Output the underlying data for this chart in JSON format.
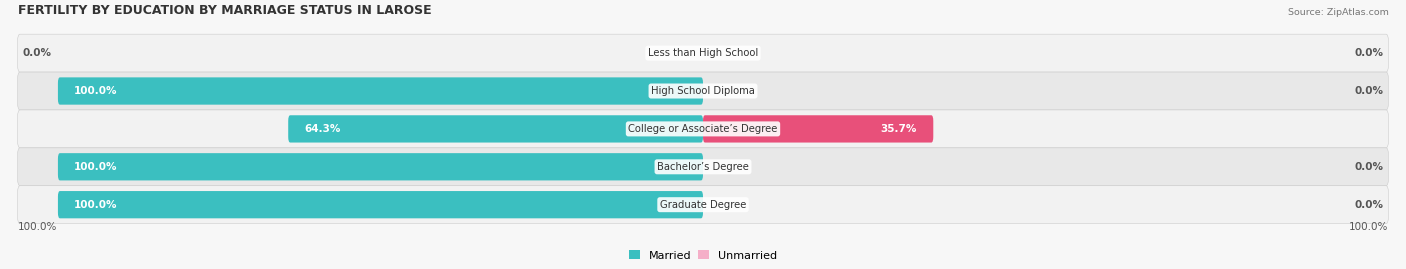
{
  "title": "FERTILITY BY EDUCATION BY MARRIAGE STATUS IN LAROSE",
  "source": "Source: ZipAtlas.com",
  "categories": [
    "Less than High School",
    "High School Diploma",
    "College or Associate’s Degree",
    "Bachelor’s Degree",
    "Graduate Degree"
  ],
  "married": [
    0.0,
    100.0,
    64.3,
    100.0,
    100.0
  ],
  "unmarried": [
    0.0,
    0.0,
    35.7,
    0.0,
    0.0
  ],
  "married_color": "#3bbfc0",
  "married_color_light": "#90d9da",
  "unmarried_color_strong": "#e8507a",
  "unmarried_color_light": "#f5afc8",
  "title_color": "#333333",
  "source_color": "#777777",
  "value_color_white": "#ffffff",
  "value_color_dark": "#555555",
  "legend_married": "Married",
  "legend_unmarried": "Unmarried",
  "bottom_left_label": "100.0%",
  "bottom_right_label": "100.0%",
  "row_colors": [
    "#f2f2f2",
    "#e8e8e8"
  ],
  "figsize": [
    14.06,
    2.69
  ],
  "dpi": 100
}
